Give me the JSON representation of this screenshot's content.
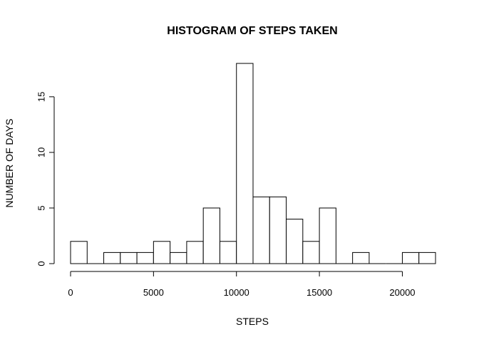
{
  "chart_data": {
    "type": "bar",
    "subtype": "histogram",
    "title": "HISTOGRAM OF STEPS TAKEN",
    "xlabel": "STEPS",
    "ylabel": "NUMBER OF DAYS",
    "bin_width": 1000,
    "bins": [
      {
        "start": 0,
        "end": 1000,
        "count": 2
      },
      {
        "start": 1000,
        "end": 2000,
        "count": 0
      },
      {
        "start": 2000,
        "end": 3000,
        "count": 1
      },
      {
        "start": 3000,
        "end": 4000,
        "count": 1
      },
      {
        "start": 4000,
        "end": 5000,
        "count": 1
      },
      {
        "start": 5000,
        "end": 6000,
        "count": 2
      },
      {
        "start": 6000,
        "end": 7000,
        "count": 1
      },
      {
        "start": 7000,
        "end": 8000,
        "count": 2
      },
      {
        "start": 8000,
        "end": 9000,
        "count": 5
      },
      {
        "start": 9000,
        "end": 10000,
        "count": 2
      },
      {
        "start": 10000,
        "end": 11000,
        "count": 18
      },
      {
        "start": 11000,
        "end": 12000,
        "count": 6
      },
      {
        "start": 12000,
        "end": 13000,
        "count": 6
      },
      {
        "start": 13000,
        "end": 14000,
        "count": 4
      },
      {
        "start": 14000,
        "end": 15000,
        "count": 2
      },
      {
        "start": 15000,
        "end": 16000,
        "count": 5
      },
      {
        "start": 16000,
        "end": 17000,
        "count": 0
      },
      {
        "start": 17000,
        "end": 18000,
        "count": 1
      },
      {
        "start": 18000,
        "end": 19000,
        "count": 0
      },
      {
        "start": 19000,
        "end": 20000,
        "count": 0
      },
      {
        "start": 20000,
        "end": 21000,
        "count": 1
      },
      {
        "start": 21000,
        "end": 22000,
        "count": 1
      }
    ],
    "xlim": [
      0,
      22000
    ],
    "ylim": [
      0,
      18
    ],
    "x_ticks": [
      0,
      5000,
      10000,
      15000,
      20000
    ],
    "x_tick_labels": [
      "0",
      "5000",
      "10000",
      "15000",
      "20000"
    ],
    "y_ticks": [
      0,
      5,
      10,
      15
    ],
    "y_tick_labels": [
      "0",
      "5",
      "10",
      "15"
    ],
    "grid": false,
    "colors": {
      "bar_fill": "#ffffff",
      "bar_stroke": "#000000"
    }
  }
}
